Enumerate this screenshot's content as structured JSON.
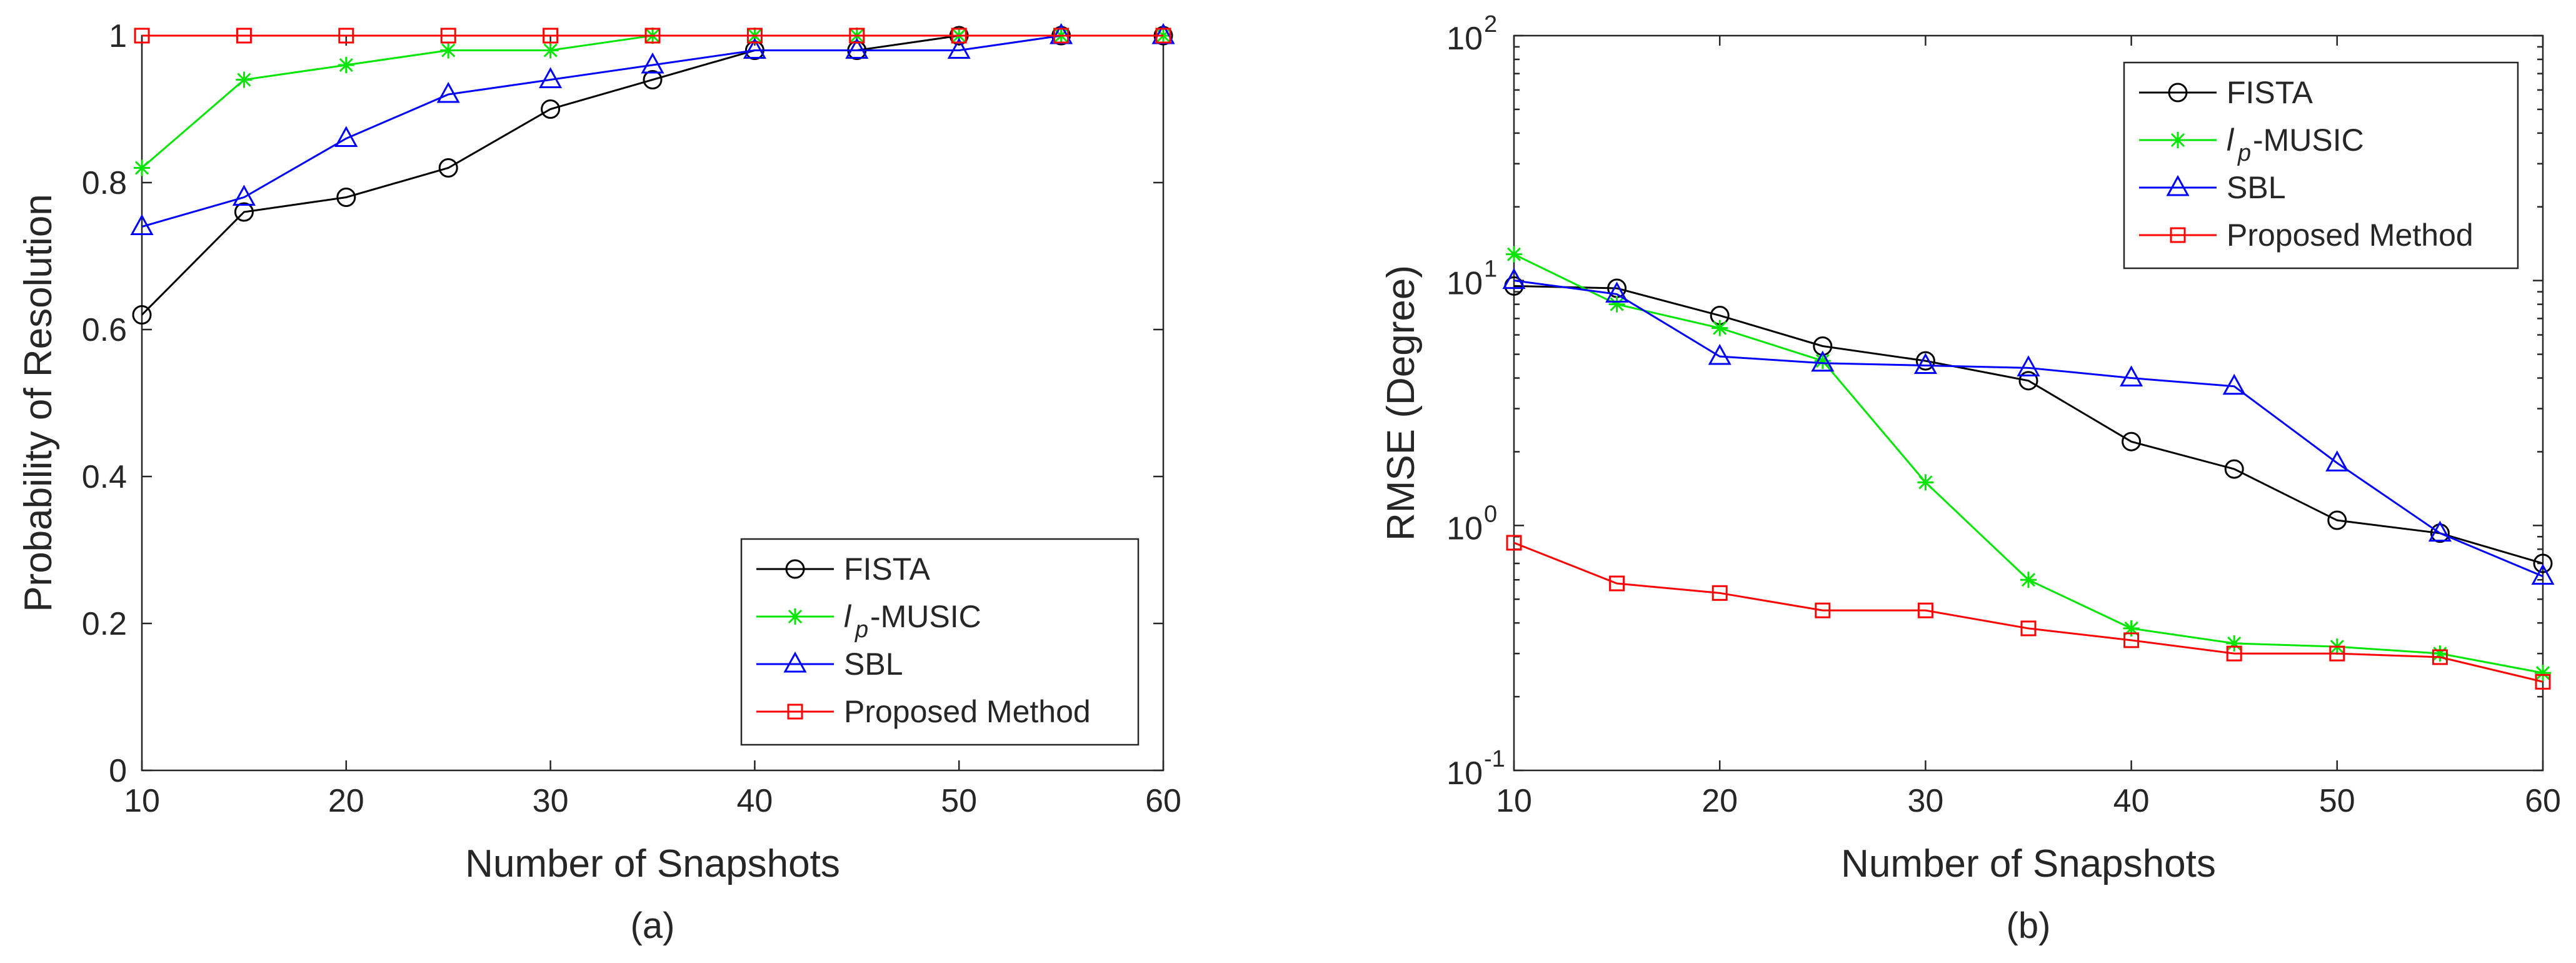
{
  "colors": {
    "FISTA": "#000000",
    "lp-MUSIC": "#00e600",
    "SBL": "#0000ff",
    "Proposed Method": "#ff0000",
    "axis": "#262626"
  },
  "chart_data": [
    {
      "type": "line",
      "panel_label": "(a)",
      "xlabel": "Number of Snapshots",
      "ylabel": "Probability of Resolution",
      "xlim": [
        10,
        60
      ],
      "ylim": [
        0,
        1
      ],
      "yscale": "linear",
      "x_ticks": [
        10,
        20,
        30,
        40,
        50,
        60
      ],
      "y_ticks": [
        0,
        0.2,
        0.4,
        0.6,
        0.8,
        1
      ],
      "y_tick_labels": [
        "0",
        "0.2",
        "0.4",
        "0.6",
        "0.8",
        "1"
      ],
      "legend_position": "bottom-right",
      "x": [
        10,
        15,
        20,
        25,
        30,
        35,
        40,
        45,
        50,
        55,
        60
      ],
      "series": [
        {
          "name": "FISTA",
          "label": "FISTA",
          "marker": "circle",
          "values": [
            0.62,
            0.76,
            0.78,
            0.82,
            0.9,
            0.94,
            0.98,
            0.98,
            1.0,
            1.0,
            1.0
          ]
        },
        {
          "name": "lp-MUSIC",
          "label_main": "l",
          "label_sub": "p",
          "label_rest": "-MUSIC",
          "marker": "star",
          "values": [
            0.82,
            0.94,
            0.96,
            0.98,
            0.98,
            1.0,
            1.0,
            1.0,
            1.0,
            1.0,
            1.0
          ]
        },
        {
          "name": "SBL",
          "label": "SBL",
          "marker": "triangle",
          "values": [
            0.74,
            0.78,
            0.86,
            0.92,
            0.94,
            0.96,
            0.98,
            0.98,
            0.98,
            1.0,
            1.0
          ]
        },
        {
          "name": "Proposed Method",
          "label": "Proposed Method",
          "marker": "square",
          "values": [
            1.0,
            1.0,
            1.0,
            1.0,
            1.0,
            1.0,
            1.0,
            1.0,
            1.0,
            1.0,
            1.0
          ]
        }
      ]
    },
    {
      "type": "line",
      "panel_label": "(b)",
      "xlabel": "Number of Snapshots",
      "ylabel": "RMSE (Degree)",
      "xlim": [
        10,
        60
      ],
      "ylim": [
        0.1,
        100
      ],
      "yscale": "log",
      "x_ticks": [
        10,
        20,
        30,
        40,
        50,
        60
      ],
      "y_ticks": [
        0.1,
        1,
        10,
        100
      ],
      "y_tick_base": [
        "10",
        "10",
        "10",
        "10"
      ],
      "y_tick_exp": [
        "-1",
        "0",
        "1",
        "2"
      ],
      "legend_position": "top-right",
      "x": [
        10,
        15,
        20,
        25,
        30,
        35,
        40,
        45,
        50,
        55,
        60
      ],
      "series": [
        {
          "name": "FISTA",
          "label": "FISTA",
          "marker": "circle",
          "values": [
            9.5,
            9.3,
            7.2,
            5.4,
            4.7,
            3.9,
            2.2,
            1.7,
            1.05,
            0.93,
            0.7
          ]
        },
        {
          "name": "lp-MUSIC",
          "label_main": "l",
          "label_sub": "p",
          "label_rest": "-MUSIC",
          "marker": "star",
          "values": [
            12.8,
            8.0,
            6.4,
            4.7,
            1.5,
            0.6,
            0.38,
            0.33,
            0.32,
            0.3,
            0.25
          ]
        },
        {
          "name": "SBL",
          "label": "SBL",
          "marker": "triangle",
          "values": [
            10.0,
            8.8,
            4.9,
            4.6,
            4.5,
            4.4,
            4.0,
            3.7,
            1.8,
            0.93,
            0.62
          ]
        },
        {
          "name": "Proposed Method",
          "label": "Proposed Method",
          "marker": "square",
          "values": [
            0.85,
            0.58,
            0.53,
            0.45,
            0.45,
            0.38,
            0.34,
            0.3,
            0.3,
            0.29,
            0.23
          ]
        }
      ]
    }
  ]
}
